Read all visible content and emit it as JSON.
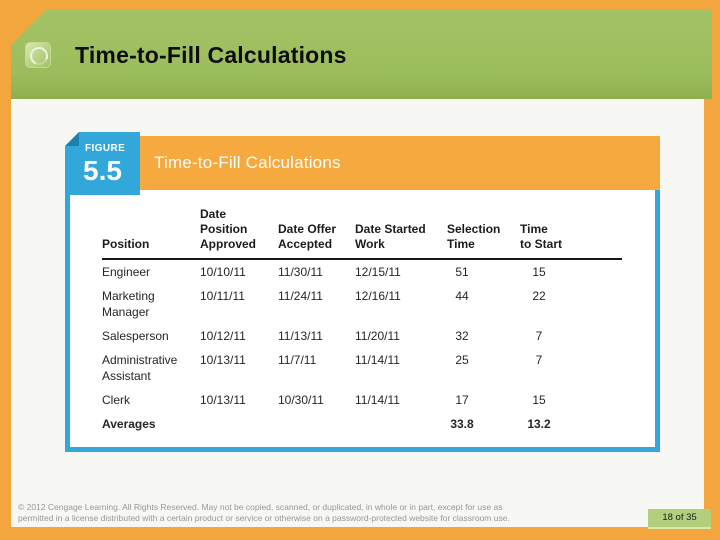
{
  "slide": {
    "title": "Time-to-Fill Calculations",
    "footer": {
      "line1": "© 2012 Cengage Learning. All Rights Reserved. May not be copied, scanned, or duplicated, in whole or in part, except for use as",
      "line2": "permitted in a license distributed with a certain product or service or otherwise on a password-protected website for classroom use.",
      "page_indicator": "18 of 35"
    },
    "colors": {
      "frame_orange": "#f4a63e",
      "header_green": "#9cbd5d",
      "figure_blue": "#32a7da",
      "figure_orange": "#f5a93e",
      "badge_green": "#b3ce7d"
    },
    "icons": {
      "logo": "ring-icon"
    }
  },
  "figure": {
    "kicker": "FIGURE",
    "number": "5.5",
    "title": "Time-to-Fill Calculations"
  },
  "table": {
    "headers": {
      "position": "Position",
      "approved": "Date\nPosition\nApproved",
      "accepted": "Date Offer\nAccepted",
      "started": "Date Started\nWork",
      "selection": "Selection\nTime",
      "time_to_start": "Time\nto Start"
    },
    "rows": [
      {
        "position": "Engineer",
        "approved": "10/10/11",
        "accepted": "11/30/11",
        "started": "12/15/11",
        "selection": "51",
        "time_to_start": "15"
      },
      {
        "position": "Marketing\nManager",
        "approved": "10/11/11",
        "accepted": "11/24/11",
        "started": "12/16/11",
        "selection": "44",
        "time_to_start": "22"
      },
      {
        "position": "Salesperson",
        "approved": "10/12/11",
        "accepted": "11/13/11",
        "started": "11/20/11",
        "selection": "32",
        "time_to_start": "7"
      },
      {
        "position": "Administrative\nAssistant",
        "approved": "10/13/11",
        "accepted": "11/7/11",
        "started": "11/14/11",
        "selection": "25",
        "time_to_start": "7"
      },
      {
        "position": "Clerk",
        "approved": "10/13/11",
        "accepted": "10/30/11",
        "started": "11/14/11",
        "selection": "17",
        "time_to_start": "15"
      },
      {
        "position": "Averages",
        "approved": "",
        "accepted": "",
        "started": "",
        "selection": "33.8",
        "time_to_start": "13.2"
      }
    ]
  }
}
